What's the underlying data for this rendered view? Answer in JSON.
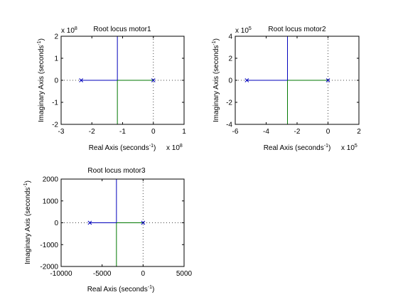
{
  "colors": {
    "branch_upper": "#0000bb",
    "branch_lower": "#007700",
    "pole": "#0000bb",
    "grid": "#444444"
  },
  "chart_data": [
    {
      "type": "line",
      "title": "Root locus motor1",
      "xlabel_main": "Real Axis (seconds",
      "ylabel_main": "Imaginary Axis (seconds",
      "label_exp": "-1",
      "label_close": ")",
      "x_multiplier": "x 10",
      "x_multiplier_exp": "8",
      "y_multiplier": "x 10",
      "y_multiplier_exp": "8",
      "xlim": [
        -3,
        1
      ],
      "ylim": [
        -2,
        2
      ],
      "xticks": [
        -3,
        -2,
        -1,
        0,
        1
      ],
      "yticks": [
        -2,
        -1,
        0,
        1,
        2
      ],
      "xtick_labels": [
        "-3",
        "-2",
        "-1",
        "0",
        "1"
      ],
      "ytick_labels": [
        "-2",
        "-1",
        "0",
        "1",
        "2"
      ],
      "poles": [
        [
          -2.35,
          0
        ],
        [
          0,
          0
        ]
      ],
      "breakaway": -1.17,
      "grid_lines": {
        "x": 0,
        "y": 0
      }
    },
    {
      "type": "line",
      "title": "Root locus  motor2",
      "xlabel_main": "Real Axis (seconds",
      "ylabel_main": "Imaginary Axis (seconds",
      "label_exp": "-1",
      "label_close": ")",
      "x_multiplier": "x 10",
      "x_multiplier_exp": "5",
      "y_multiplier": "x 10",
      "y_multiplier_exp": "5",
      "xlim": [
        -6,
        2
      ],
      "ylim": [
        -4,
        4
      ],
      "xticks": [
        -6,
        -4,
        -2,
        0,
        2
      ],
      "yticks": [
        -4,
        -2,
        0,
        2,
        4
      ],
      "xtick_labels": [
        "-6",
        "-4",
        "-2",
        "0",
        "2"
      ],
      "ytick_labels": [
        "-4",
        "-2",
        "0",
        "2",
        "4"
      ],
      "poles": [
        [
          -5.25,
          0
        ],
        [
          0,
          0
        ]
      ],
      "breakaway": -2.62,
      "grid_lines": {
        "x": 0,
        "y": 0
      }
    },
    {
      "type": "line",
      "title": "Root locus  motor3",
      "xlabel_main": "Real Axis (seconds",
      "ylabel_main": "Imaginary Axis (seconds",
      "label_exp": "-1",
      "label_close": ")",
      "x_multiplier": "",
      "x_multiplier_exp": "",
      "y_multiplier": "",
      "y_multiplier_exp": "",
      "xlim": [
        -10000,
        5000
      ],
      "ylim": [
        -2000,
        2000
      ],
      "xticks": [
        -10000,
        -5000,
        0,
        5000
      ],
      "yticks": [
        -2000,
        -1000,
        0,
        1000,
        2000
      ],
      "xtick_labels": [
        "-10000",
        "-5000",
        "0",
        "5000"
      ],
      "ytick_labels": [
        "-2000",
        "-1000",
        "0",
        "1000",
        "2000"
      ],
      "poles": [
        [
          -6500,
          0
        ],
        [
          0,
          0
        ]
      ],
      "breakaway": -3250,
      "grid_lines": {
        "x": 0,
        "y": 0
      }
    }
  ]
}
